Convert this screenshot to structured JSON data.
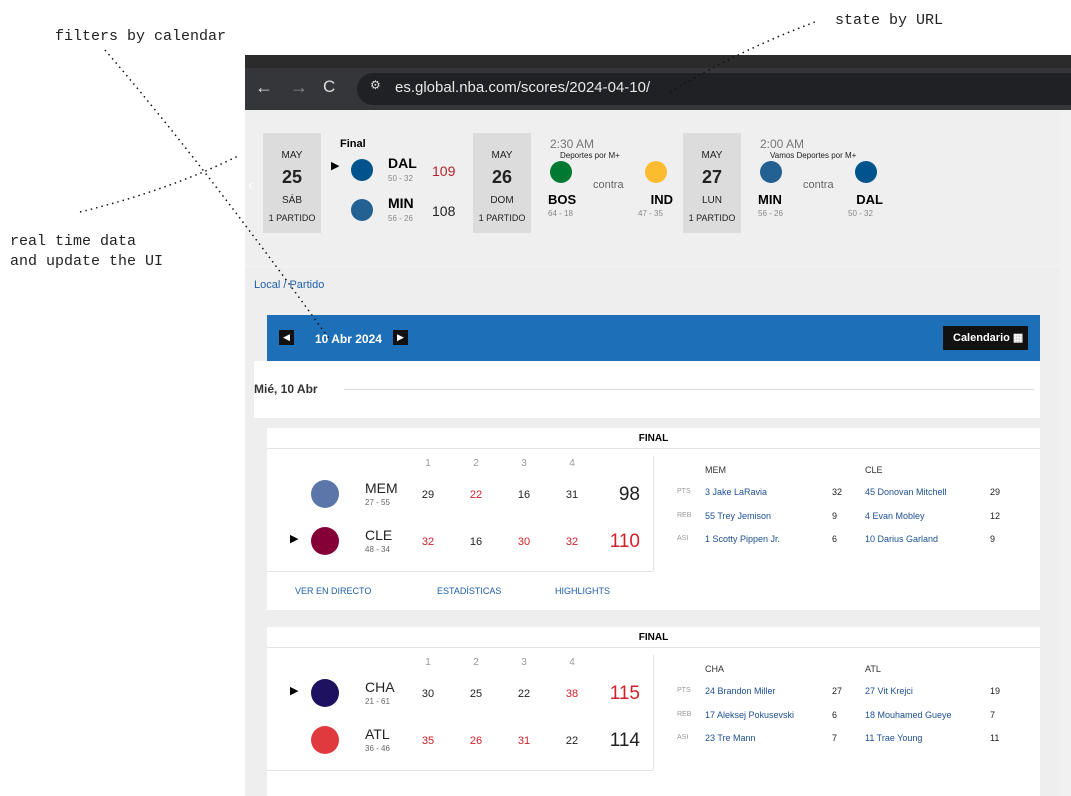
{
  "annotations": {
    "calendar": "filters by calendar",
    "url": "state by URL",
    "realtime": [
      "real time data",
      "and update the UI"
    ]
  },
  "browser": {
    "url": "es.global.nba.com/scores/2024-04-10/"
  },
  "schedule_strip": [
    {
      "month": "MAY",
      "day": 25,
      "weekday": "SÁB",
      "games": "1 PARTIDO",
      "status": "Final",
      "teams": [
        {
          "abbr": "DAL",
          "record": "50 - 32",
          "score": 109
        },
        {
          "abbr": "MIN",
          "record": "56 - 26",
          "score": 108
        }
      ]
    },
    {
      "month": "MAY",
      "day": 26,
      "weekday": "DOM",
      "games": "1 PARTIDO",
      "time": "2:30 AM",
      "broadcast": "Deportes por M+",
      "versus": "contra",
      "teams": [
        {
          "abbr": "BOS",
          "record": "64 - 18"
        },
        {
          "abbr": "IND",
          "record": "47 - 35"
        }
      ]
    },
    {
      "month": "MAY",
      "day": 27,
      "weekday": "LUN",
      "games": "1 PARTIDO",
      "time": "2:00 AM",
      "broadcast": "Vamos Deportes por M+",
      "versus": "contra",
      "teams": [
        {
          "abbr": "MIN",
          "record": "56 - 26"
        },
        {
          "abbr": "DAL",
          "record": "50 - 32"
        }
      ]
    }
  ],
  "breadcrumb": "Local / Partido",
  "date_bar": {
    "date": "10 Abr 2024",
    "calendar": "Calendario"
  },
  "day_header": "Mié, 10 Abr",
  "games": [
    {
      "status": "FINAL",
      "quarters": [
        1,
        2,
        3,
        4
      ],
      "teams": [
        {
          "abbr": "MEM",
          "record": "27 - 55",
          "periods": [
            29,
            22,
            16,
            31
          ],
          "total": 98
        },
        {
          "abbr": "CLE",
          "record": "48 - 34",
          "periods": [
            32,
            16,
            30,
            32
          ],
          "total": 110
        }
      ],
      "leaders": {
        "teams": [
          "MEM",
          "CLE"
        ],
        "rows": [
          {
            "label": "PTS",
            "players": [
              "3 Jake LaRavia",
              "45 Donovan Mitchell"
            ],
            "values": [
              32,
              29
            ]
          },
          {
            "label": "REB",
            "players": [
              "55 Trey Jemison",
              "4 Evan Mobley"
            ],
            "values": [
              9,
              12
            ]
          },
          {
            "label": "ASI",
            "players": [
              "1 Scotty Pippen Jr.",
              "10 Darius Garland"
            ],
            "values": [
              6,
              9
            ]
          }
        ]
      },
      "links": [
        "VER EN DIRECTO",
        "ESTADÍSTICAS",
        "HIGHLIGHTS"
      ]
    },
    {
      "status": "FINAL",
      "quarters": [
        1,
        2,
        3,
        4
      ],
      "teams": [
        {
          "abbr": "CHA",
          "record": "21 - 61",
          "periods": [
            30,
            25,
            22,
            38
          ],
          "total": 115
        },
        {
          "abbr": "ATL",
          "record": "36 - 46",
          "periods": [
            35,
            26,
            31,
            22
          ],
          "total": 114
        }
      ],
      "leaders": {
        "teams": [
          "CHA",
          "ATL"
        ],
        "rows": [
          {
            "label": "PTS",
            "players": [
              "24 Brandon Miller",
              "27 Vit Krejci"
            ],
            "values": [
              27,
              19
            ]
          },
          {
            "label": "REB",
            "players": [
              "17 Aleksej Pokusevski",
              "18 Mouhamed Gueye"
            ],
            "values": [
              6,
              7
            ]
          },
          {
            "label": "ASI",
            "players": [
              "23 Tre Mann",
              "11 Trae Young"
            ],
            "values": [
              7,
              11
            ]
          }
        ]
      }
    }
  ]
}
